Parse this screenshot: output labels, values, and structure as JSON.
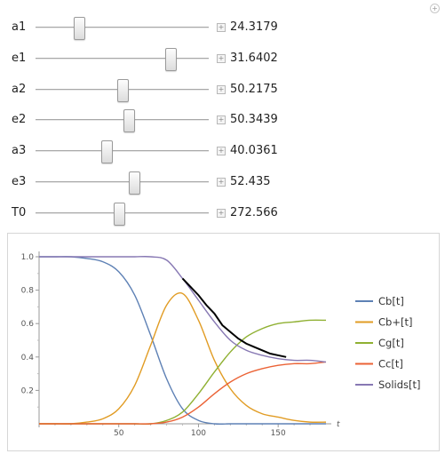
{
  "corner_icon": "plus-circle-icon",
  "sliders": [
    {
      "label": "a1",
      "value": "24.3179",
      "fraction": 0.25
    },
    {
      "label": "e1",
      "value": "31.6402",
      "fraction": 0.78
    },
    {
      "label": "a2",
      "value": "50.2175",
      "fraction": 0.5
    },
    {
      "label": "e2",
      "value": "50.3439",
      "fraction": 0.54
    },
    {
      "label": "a3",
      "value": "40.0361",
      "fraction": 0.41
    },
    {
      "label": "e3",
      "value": "52.435",
      "fraction": 0.57
    },
    {
      "label": "T0",
      "value": "272.566",
      "fraction": 0.48
    }
  ],
  "chart_data": {
    "type": "line",
    "xlabel": "t",
    "ylabel": "",
    "xlim": [
      0,
      180
    ],
    "ylim": [
      0,
      1.0
    ],
    "x_ticks": [
      50,
      100,
      150
    ],
    "y_ticks": [
      0.2,
      0.4,
      0.6,
      0.8,
      1.0
    ],
    "x_tick_labels": [
      "50",
      "100",
      "150"
    ],
    "y_tick_labels": [
      "0.2",
      "0.4",
      "0.6",
      "0.8",
      "1.0"
    ],
    "legend_position": "right",
    "x": [
      0,
      10,
      20,
      30,
      40,
      50,
      60,
      70,
      80,
      90,
      100,
      110,
      120,
      130,
      140,
      150,
      160,
      170,
      180
    ],
    "series": [
      {
        "name": "Cb[t]",
        "color": "#5e81b5",
        "values": [
          1.0,
          1.0,
          1.0,
          0.99,
          0.97,
          0.91,
          0.77,
          0.53,
          0.27,
          0.09,
          0.02,
          0.0,
          0.0,
          0.0,
          0.0,
          0.0,
          0.0,
          0.0,
          0.0
        ]
      },
      {
        "name": "Cb+[t]",
        "color": "#e19c24",
        "values": [
          0.0,
          0.0,
          0.0,
          0.01,
          0.03,
          0.09,
          0.23,
          0.47,
          0.71,
          0.78,
          0.62,
          0.38,
          0.21,
          0.11,
          0.06,
          0.04,
          0.02,
          0.01,
          0.01
        ]
      },
      {
        "name": "Cg[t]",
        "color": "#8fb032",
        "values": [
          0.0,
          0.0,
          0.0,
          0.0,
          0.0,
          0.0,
          0.0,
          0.0,
          0.02,
          0.07,
          0.18,
          0.31,
          0.43,
          0.52,
          0.57,
          0.6,
          0.61,
          0.62,
          0.62
        ]
      },
      {
        "name": "Cc[t]",
        "color": "#eb6235",
        "values": [
          0.0,
          0.0,
          0.0,
          0.0,
          0.0,
          0.0,
          0.0,
          0.0,
          0.01,
          0.04,
          0.1,
          0.18,
          0.25,
          0.3,
          0.33,
          0.35,
          0.36,
          0.36,
          0.37
        ]
      },
      {
        "name": "Solids[t]",
        "color": "#8778b3",
        "values": [
          1.0,
          1.0,
          1.0,
          1.0,
          1.0,
          1.0,
          1.0,
          1.0,
          0.98,
          0.87,
          0.74,
          0.61,
          0.5,
          0.44,
          0.41,
          0.39,
          0.38,
          0.38,
          0.37
        ]
      }
    ],
    "overlay": {
      "color": "#000000",
      "x": [
        90,
        95,
        100,
        105,
        110,
        115,
        120,
        125,
        130,
        135,
        140,
        145,
        150,
        155
      ],
      "y": [
        0.87,
        0.82,
        0.77,
        0.71,
        0.66,
        0.59,
        0.55,
        0.51,
        0.48,
        0.46,
        0.44,
        0.42,
        0.41,
        0.4
      ]
    }
  }
}
